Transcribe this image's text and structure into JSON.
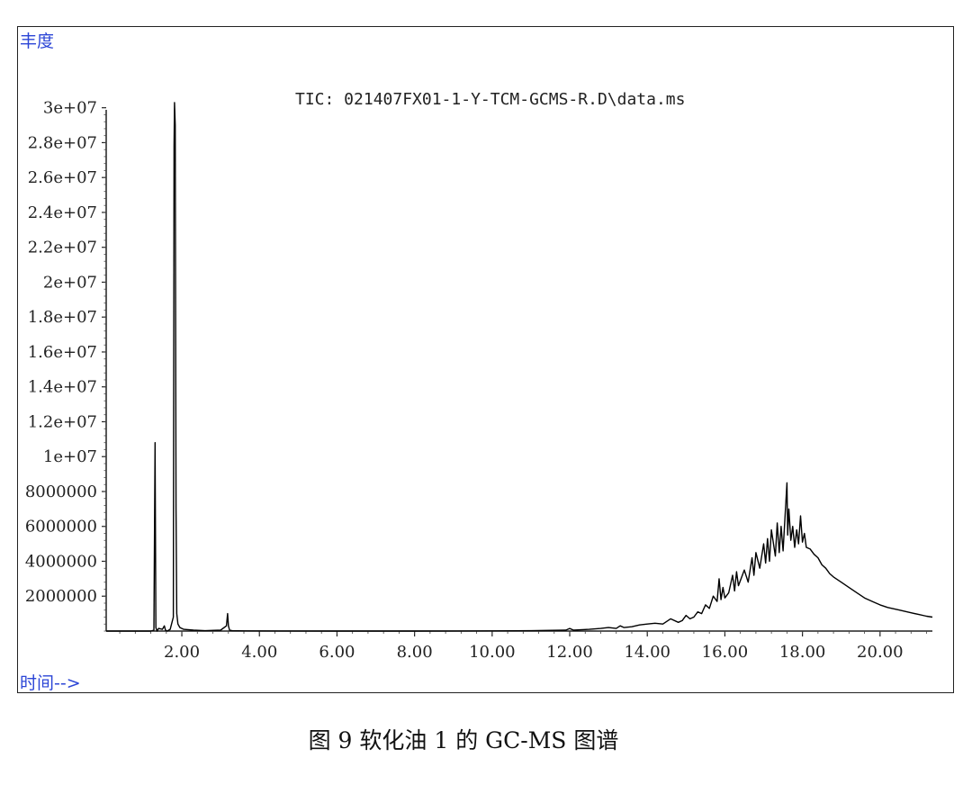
{
  "caption": "图 9 软化油 1 的 GC-MS 图谱",
  "chart_data": {
    "type": "line",
    "title": "TIC: 021407FX01-1-Y-TCM-GCMS-R.D\\data.ms",
    "ylabel": "丰度",
    "xlabel": "时间-->",
    "xlim": [
      0.05,
      21.35
    ],
    "ylim": [
      0,
      30500000
    ],
    "x_ticks": [
      2,
      4,
      6,
      8,
      10,
      12,
      14,
      16,
      18,
      20
    ],
    "x_tick_labels": [
      "2.00",
      "4.00",
      "6.00",
      "8.00",
      "10.00",
      "12.00",
      "14.00",
      "16.00",
      "18.00",
      "20.00"
    ],
    "y_ticks": [
      2000000,
      4000000,
      6000000,
      8000000,
      10000000,
      12000000,
      14000000,
      16000000,
      18000000,
      20000000,
      22000000,
      24000000,
      26000000,
      28000000,
      30000000
    ],
    "y_tick_labels": [
      "2000000",
      "4000000",
      "6000000",
      "8000000",
      "1e+07",
      "1.2e+07",
      "1.4e+07",
      "1.6e+07",
      "1.8e+07",
      "2e+07",
      "2.2e+07",
      "2.4e+07",
      "2.6e+07",
      "2.8e+07",
      "3e+07"
    ],
    "grid": false,
    "series": [
      {
        "color": "#000000",
        "x": [
          0.05,
          1.0,
          1.2,
          1.28,
          1.31,
          1.33,
          1.36,
          1.4,
          1.5,
          1.55,
          1.58,
          1.62,
          1.7,
          1.78,
          1.8,
          1.81,
          1.83,
          1.85,
          1.87,
          1.9,
          1.95,
          2.05,
          2.3,
          2.6,
          3.0,
          3.15,
          3.18,
          3.2,
          3.23,
          3.3,
          3.6,
          4.5,
          6.0,
          8.0,
          10.0,
          11.0,
          11.9,
          12.0,
          12.1,
          12.5,
          12.8,
          13.0,
          13.2,
          13.3,
          13.4,
          13.6,
          13.8,
          14.0,
          14.2,
          14.4,
          14.6,
          14.8,
          14.9,
          15.0,
          15.1,
          15.2,
          15.3,
          15.4,
          15.5,
          15.6,
          15.7,
          15.8,
          15.85,
          15.9,
          15.95,
          16.0,
          16.1,
          16.2,
          16.25,
          16.3,
          16.35,
          16.4,
          16.5,
          16.6,
          16.7,
          16.75,
          16.8,
          16.9,
          17.0,
          17.05,
          17.1,
          17.15,
          17.2,
          17.3,
          17.35,
          17.4,
          17.45,
          17.5,
          17.55,
          17.6,
          17.62,
          17.65,
          17.7,
          17.75,
          17.8,
          17.85,
          17.9,
          17.95,
          18.0,
          18.05,
          18.1,
          18.2,
          18.3,
          18.4,
          18.5,
          18.6,
          18.7,
          18.8,
          19.0,
          19.2,
          19.4,
          19.6,
          19.8,
          20.0,
          20.2,
          20.5,
          20.8,
          21.0,
          21.2,
          21.35
        ],
        "y": [
          0,
          0,
          0,
          50000,
          10800000,
          200000,
          0,
          150000,
          100000,
          300000,
          50000,
          0,
          100000,
          800000,
          27800000,
          30300000,
          29000000,
          7000000,
          1000000,
          400000,
          200000,
          100000,
          50000,
          20000,
          50000,
          300000,
          1000000,
          300000,
          50000,
          20000,
          10000,
          5000,
          0,
          0,
          10000,
          20000,
          50000,
          150000,
          50000,
          100000,
          150000,
          200000,
          150000,
          300000,
          200000,
          250000,
          350000,
          400000,
          450000,
          400000,
          700000,
          500000,
          600000,
          900000,
          700000,
          800000,
          1100000,
          1000000,
          1500000,
          1300000,
          2000000,
          1700000,
          3000000,
          1800000,
          2500000,
          1900000,
          2200000,
          3200000,
          2300000,
          3400000,
          2600000,
          2900000,
          3500000,
          2800000,
          4200000,
          3200000,
          4500000,
          3600000,
          5000000,
          3900000,
          5300000,
          4000000,
          5800000,
          4300000,
          6200000,
          4500000,
          6000000,
          4600000,
          6500000,
          8500000,
          5500000,
          7000000,
          5200000,
          6000000,
          4800000,
          5800000,
          5000000,
          6600000,
          5100000,
          5600000,
          4800000,
          4700000,
          4400000,
          4200000,
          3800000,
          3600000,
          3300000,
          3100000,
          2800000,
          2500000,
          2200000,
          1900000,
          1700000,
          1500000,
          1350000,
          1200000,
          1050000,
          950000,
          850000,
          800000
        ]
      }
    ]
  }
}
